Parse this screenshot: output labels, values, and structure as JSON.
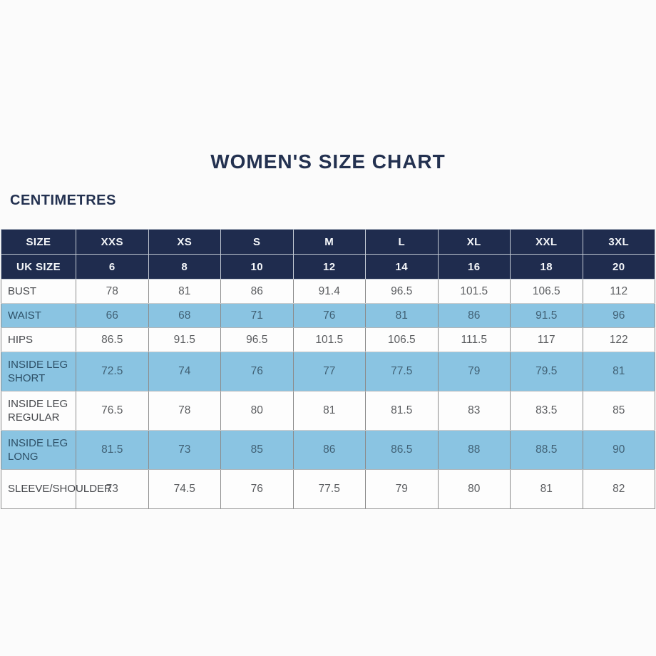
{
  "page": {
    "title": "WOMEN'S SIZE CHART",
    "unit_label": "CENTIMETRES"
  },
  "colors": {
    "header_bg": "#1f2c4e",
    "header_text": "#ffffff",
    "stripe_row_bg": "#8ac4e2",
    "plain_row_bg": "#fdfdfd",
    "title_text": "#233150"
  },
  "chart_data": {
    "type": "table",
    "title": "WOMEN'S SIZE CHART",
    "unit": "CENTIMETRES",
    "size_header": {
      "label": "SIZE",
      "values": [
        "XXS",
        "XS",
        "S",
        "M",
        "L",
        "XL",
        "XXL",
        "3XL"
      ]
    },
    "uk_size_header": {
      "label": "UK SIZE",
      "values": [
        "6",
        "8",
        "10",
        "12",
        "14",
        "16",
        "18",
        "20"
      ]
    },
    "measurement_rows": [
      {
        "label": "BUST",
        "values": [
          "78",
          "81",
          "86",
          "91.4",
          "96.5",
          "101.5",
          "106.5",
          "112"
        ]
      },
      {
        "label": "WAIST",
        "values": [
          "66",
          "68",
          "71",
          "76",
          "81",
          "86",
          "91.5",
          "96"
        ]
      },
      {
        "label": "HIPS",
        "values": [
          "86.5",
          "91.5",
          "96.5",
          "101.5",
          "106.5",
          "111.5",
          "117",
          "122"
        ]
      },
      {
        "label": "INSIDE LEG SHORT",
        "values": [
          "72.5",
          "74",
          "76",
          "77",
          "77.5",
          "79",
          "79.5",
          "81"
        ]
      },
      {
        "label": "INSIDE LEG REGULAR",
        "values": [
          "76.5",
          "78",
          "80",
          "81",
          "81.5",
          "83",
          "83.5",
          "85"
        ]
      },
      {
        "label": "INSIDE LEG LONG",
        "values": [
          "81.5",
          "73",
          "85",
          "86",
          "86.5",
          "88",
          "88.5",
          "90"
        ]
      },
      {
        "label": "SLEEVE/SHOULDER",
        "values": [
          "73",
          "74.5",
          "76",
          "77.5",
          "79",
          "80",
          "81",
          "82"
        ]
      }
    ]
  }
}
